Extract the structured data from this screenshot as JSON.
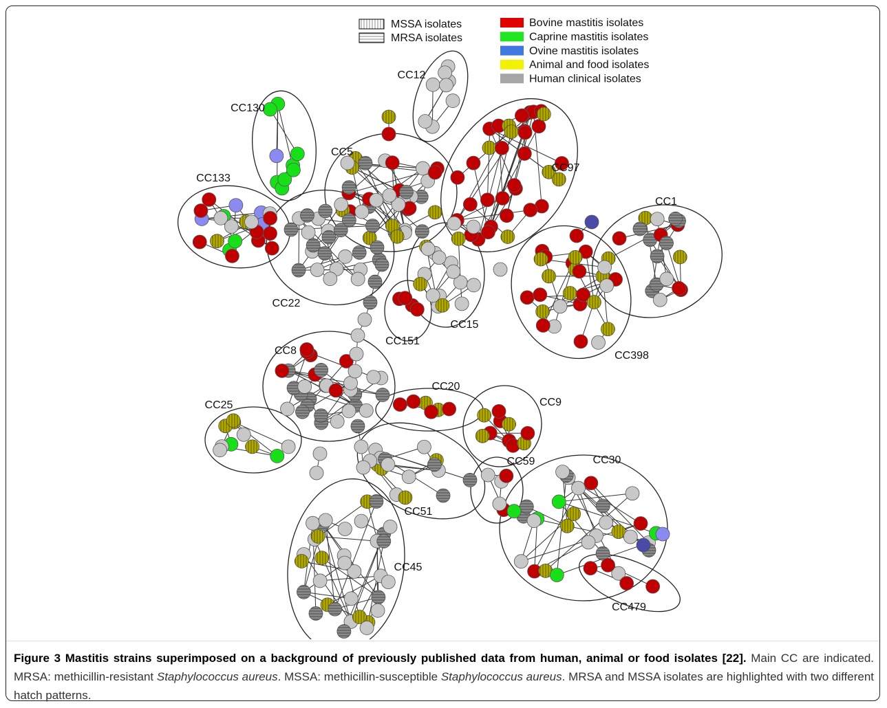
{
  "legend": {
    "patterns": [
      {
        "label": "MSSA isolates",
        "hatch": "vertical"
      },
      {
        "label": "MRSA isolates",
        "hatch": "horizontal"
      }
    ],
    "colors": [
      {
        "label": "Bovine mastitis isolates",
        "color": "#e00000"
      },
      {
        "label": "Caprine mastitis isolates",
        "color": "#22e622"
      },
      {
        "label": "Ovine mastitis isolates",
        "color": "#3f78e0"
      },
      {
        "label": "Animal and food isolates",
        "color": "#f2f200"
      },
      {
        "label": "Human clinical isolates",
        "color": "#a6a6a6"
      }
    ]
  },
  "clusters": [
    {
      "label": "CC12"
    },
    {
      "label": "CC130"
    },
    {
      "label": "CC133"
    },
    {
      "label": "CC5"
    },
    {
      "label": "CC97"
    },
    {
      "label": "CC1"
    },
    {
      "label": "CC22"
    },
    {
      "label": "CC15"
    },
    {
      "label": "CC151"
    },
    {
      "label": "CC398"
    },
    {
      "label": "CC8"
    },
    {
      "label": "CC20"
    },
    {
      "label": "CC9"
    },
    {
      "label": "CC25"
    },
    {
      "label": "CC59"
    },
    {
      "label": "CC30"
    },
    {
      "label": "CC51"
    },
    {
      "label": "CC45"
    },
    {
      "label": "CC479"
    }
  ],
  "caption": {
    "segments": [
      {
        "text": "Figure 3 Mastitis strains superimposed on a background of previously published data from human, animal or food isolates [22].",
        "style": "bold"
      },
      {
        "text": " Main CC are indicated. MRSA: methicillin-resistant ",
        "style": "normal"
      },
      {
        "text": "Staphylococcus aureus",
        "style": "italic"
      },
      {
        "text": ". MSSA: methicillin-susceptible ",
        "style": "normal"
      },
      {
        "text": "Staphylococcus aureus",
        "style": "italic"
      },
      {
        "text": ". MRSA and MSSA isolates are highlighted with two different hatch patterns.",
        "style": "normal"
      }
    ]
  }
}
